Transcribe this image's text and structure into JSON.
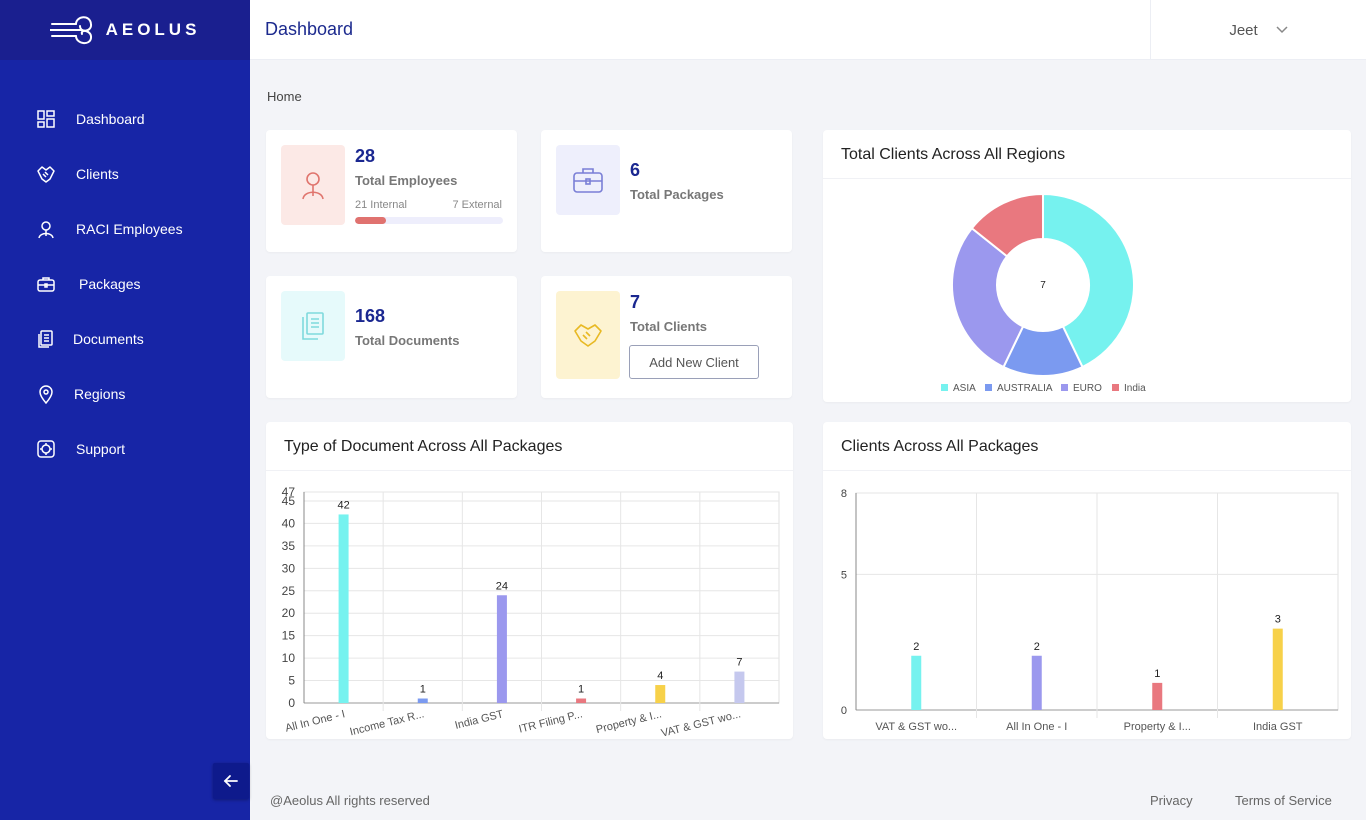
{
  "app": {
    "brand": "AEOLUS"
  },
  "sidebar": {
    "items": [
      {
        "label": "Dashboard",
        "icon": "dashboard-icon"
      },
      {
        "label": "Clients",
        "icon": "handshake-icon"
      },
      {
        "label": "RACI Employees",
        "icon": "user-icon"
      },
      {
        "label": "Packages",
        "icon": "briefcase-icon"
      },
      {
        "label": "Documents",
        "icon": "document-icon"
      },
      {
        "label": "Regions",
        "icon": "location-pin-icon"
      },
      {
        "label": "Support",
        "icon": "support-icon"
      }
    ]
  },
  "header": {
    "title": "Dashboard",
    "user": "Jeet"
  },
  "breadcrumb": "Home",
  "stats": {
    "employees": {
      "value": "28",
      "label": "Total Employees",
      "internal": "21 Internal",
      "external": "7 External",
      "internal_fraction": 0.21
    },
    "packages": {
      "value": "6",
      "label": "Total Packages"
    },
    "documents": {
      "value": "168",
      "label": "Total Documents"
    },
    "clients": {
      "value": "7",
      "label": "Total Clients",
      "button": "Add New Client"
    }
  },
  "cards": {
    "regions_title": "Total Clients Across All Regions",
    "doc_types_title": "Type of Document Across All Packages",
    "client_packages_title": "Clients Across All Packages"
  },
  "footer": {
    "copyright": "@Aeolus All rights reserved",
    "privacy": "Privacy",
    "terms": "Terms of Service"
  },
  "colors": {
    "cyan": "#76f2ef",
    "blue": "#7b9af0",
    "purple": "#9b98ee",
    "red": "#e9787f",
    "yellow": "#f7d149",
    "lavender": "#c5c8ee"
  },
  "chart_data": [
    {
      "type": "pie",
      "title": "Total Clients Across All Regions",
      "center_label": "7",
      "categories": [
        "ASIA",
        "AUSTRALIA",
        "EURO",
        "India"
      ],
      "values": [
        3,
        1,
        2,
        1
      ],
      "slice_colors": [
        "#76f2ef",
        "#7b9af0",
        "#9b98ee",
        "#e9787f"
      ],
      "legend": "bottom"
    },
    {
      "type": "bar",
      "title": "Type of Document Across All Packages",
      "categories": [
        "All In One - I",
        "Income Tax R...",
        "India GST",
        "ITR Filing P...",
        "Property & I...",
        "VAT & GST wo..."
      ],
      "values": [
        42,
        1,
        24,
        1,
        4,
        7
      ],
      "bar_colors": [
        "#76f2ef",
        "#7b9af0",
        "#9b98ee",
        "#e9787f",
        "#f7d149",
        "#c5c8ee"
      ],
      "ylim": [
        0,
        47
      ],
      "yticks": [
        0,
        5,
        10,
        15,
        20,
        25,
        30,
        35,
        40,
        45,
        47
      ],
      "grid": true
    },
    {
      "type": "bar",
      "title": "Clients Across All Packages",
      "categories": [
        "VAT & GST wo...",
        "All In One - I",
        "Property & I...",
        "India GST"
      ],
      "values": [
        2,
        2,
        1,
        3
      ],
      "bar_colors": [
        "#76f2ef",
        "#9b98ee",
        "#e9787f",
        "#f7d149"
      ],
      "ylim": [
        0,
        8
      ],
      "yticks": [
        0,
        5,
        8
      ],
      "grid": true
    }
  ]
}
